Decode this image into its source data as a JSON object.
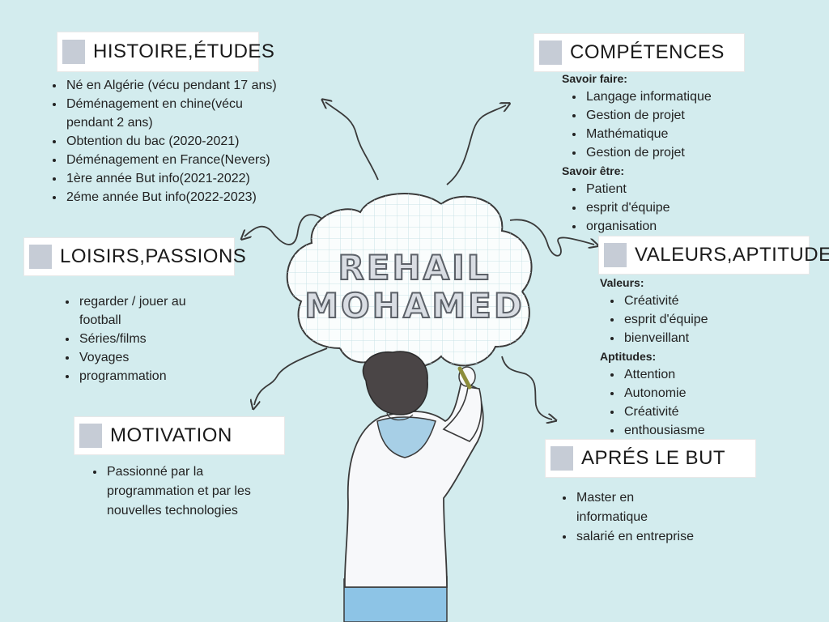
{
  "center": {
    "first_name": "REHAIL",
    "last_name": "MOHAMED"
  },
  "sections": {
    "histoire": {
      "title": "HISTOIRE,ÉTUDES",
      "items": [
        "Né en Algérie (vécu pendant 17 ans)",
        "Déménagement en chine(vécu pendant 2 ans)",
        "Obtention du bac  (2020-2021)",
        "Déménagement en France(Nevers)",
        "1ère année But info(2021-2022)",
        "2éme année But info(2022-2023)"
      ]
    },
    "competences": {
      "title": "COMPÉTENCES",
      "savoir_faire_label": "Savoir faire:",
      "savoir_faire": [
        "Langage informatique",
        "Gestion de projet",
        "Mathématique",
        "Gestion de projet"
      ],
      "savoir_etre_label": "Savoir être:",
      "savoir_etre": [
        "Patient",
        "esprit d'équipe",
        "organisation"
      ]
    },
    "loisirs": {
      "title": "LOISIRS,PASSIONS",
      "items": [
        "regarder / jouer au football",
        "Séries/films",
        "Voyages",
        "programmation"
      ]
    },
    "valeurs": {
      "title": "VALEURS,APTITUDES",
      "valeurs_label": "Valeurs:",
      "valeurs": [
        "Créativité",
        "esprit d'équipe",
        "bienveillant"
      ],
      "aptitudes_label": "Aptitudes:",
      "aptitudes": [
        "Attention",
        "Autonomie",
        "Créativité",
        "enthousiasme"
      ]
    },
    "motivation": {
      "title": "MOTIVATION",
      "items": [
        "Passionné par la programmation et par les  nouvelles technologies"
      ]
    },
    "apres": {
      "title": "APRÉS LE BUT",
      "items": [
        "Master en informatique",
        "salarié en entreprise"
      ]
    }
  },
  "colors": {
    "background": "#d3ecee",
    "placeholder_square": "#c6ccd6",
    "hoodie_sleeve": "#a7cfe6",
    "hair": "#4a4546",
    "arrow": "#3a3a3a"
  }
}
